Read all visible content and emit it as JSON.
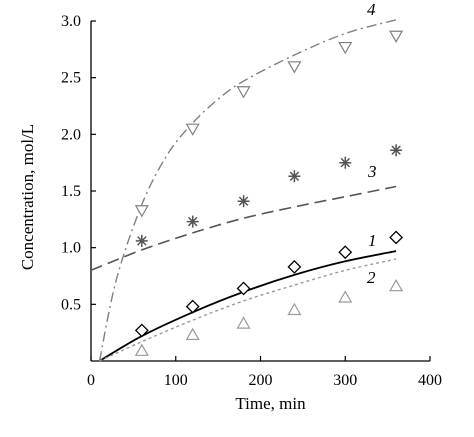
{
  "chart_data": {
    "type": "scatter",
    "xlabel": "Time, min",
    "ylabel": "Concentration, mol/L",
    "xlim": [
      0,
      400
    ],
    "ylim": [
      0,
      3.0
    ],
    "xticks": [
      "0",
      "100",
      "200",
      "300",
      "400"
    ],
    "yticks": [
      "0.5",
      "1.0",
      "1.5",
      "2.0",
      "2.5",
      "3.0"
    ],
    "grid": false,
    "series": [
      {
        "name": "1",
        "marker": "diamond",
        "marker_color": "#000000",
        "x": [
          60,
          120,
          180,
          240,
          300,
          360
        ],
        "y": [
          0.27,
          0.48,
          0.64,
          0.83,
          0.96,
          1.09
        ],
        "curve": {
          "style": "solid",
          "color": "#000000",
          "x": [
            10,
            60,
            120,
            180,
            240,
            300,
            360
          ],
          "y": [
            0.0,
            0.22,
            0.43,
            0.61,
            0.76,
            0.88,
            0.97
          ]
        }
      },
      {
        "name": "2",
        "marker": "triangle-up",
        "marker_color": "#9a9a9a",
        "x": [
          60,
          120,
          180,
          240,
          300,
          360
        ],
        "y": [
          0.09,
          0.23,
          0.33,
          0.45,
          0.56,
          0.66
        ],
        "curve": {
          "style": "dotted",
          "color": "#9a9a9a",
          "x": [
            10,
            60,
            120,
            180,
            240,
            300,
            360
          ],
          "y": [
            0.0,
            0.17,
            0.36,
            0.53,
            0.67,
            0.8,
            0.9
          ]
        }
      },
      {
        "name": "3",
        "marker": "asterisk",
        "marker_color": "#555555",
        "x": [
          60,
          120,
          180,
          240,
          300,
          360
        ],
        "y": [
          1.06,
          1.23,
          1.41,
          1.63,
          1.75,
          1.86
        ],
        "curve": {
          "style": "dashed",
          "color": "#555555",
          "x": [
            0,
            60,
            120,
            180,
            240,
            300,
            360
          ],
          "y": [
            0.8,
            0.98,
            1.13,
            1.26,
            1.36,
            1.45,
            1.54
          ]
        }
      },
      {
        "name": "4",
        "marker": "triangle-down",
        "marker_color": "#808080",
        "x": [
          60,
          120,
          180,
          240,
          300,
          360
        ],
        "y": [
          1.33,
          2.05,
          2.38,
          2.6,
          2.77,
          2.87
        ],
        "curve": {
          "style": "dash-dot",
          "color": "#808080",
          "x": [
            10,
            30,
            60,
            90,
            120,
            150,
            180,
            240,
            300,
            360
          ],
          "y": [
            0.0,
            0.72,
            1.38,
            1.82,
            2.1,
            2.31,
            2.47,
            2.7,
            2.89,
            3.01
          ]
        }
      }
    ]
  }
}
